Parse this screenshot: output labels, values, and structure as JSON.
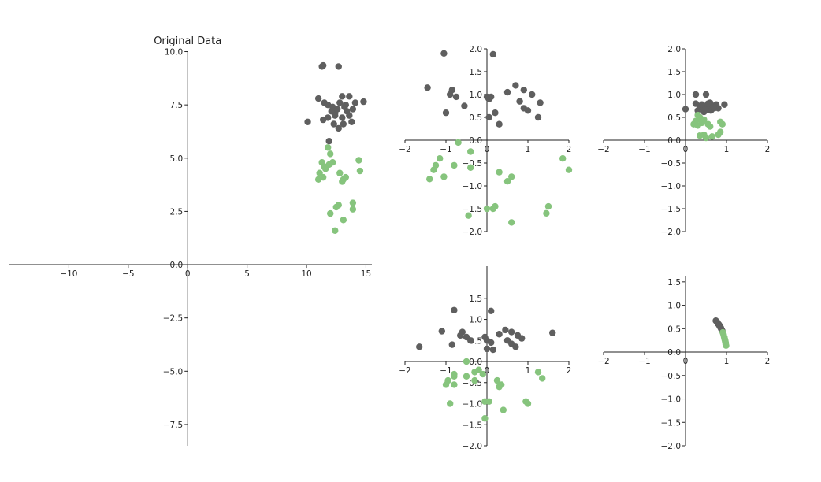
{
  "colors": {
    "class_a": "#5f5f5f",
    "class_b": "#86c47d",
    "axis": "#222222"
  },
  "chart_data": [
    {
      "type": "scatter",
      "id": "original",
      "title": "Original Data",
      "xlim": [
        -15,
        15.5
      ],
      "ylim": [
        -8.5,
        10.5
      ],
      "xticks": [
        -10,
        -5,
        0,
        5,
        10,
        15
      ],
      "yticks": [
        10.0,
        7.5,
        5.0,
        2.5,
        0.0,
        -2.5,
        -5.0,
        -7.5
      ],
      "xtick_labels": [
        "−10",
        "−5",
        "0",
        "5",
        "10",
        "15"
      ],
      "ytick_labels": [
        "10.0",
        "7.5",
        "5.0",
        "2.5",
        "0.0",
        "−2.5",
        "−5.0",
        "−7.5"
      ],
      "series": [
        {
          "class": "a",
          "points": [
            [
              11.3,
              9.3
            ],
            [
              12.7,
              9.3
            ],
            [
              11.4,
              9.35
            ],
            [
              11.0,
              7.8
            ],
            [
              11.5,
              7.6
            ],
            [
              11.8,
              7.5
            ],
            [
              12.2,
              7.4
            ],
            [
              12.4,
              7.1
            ],
            [
              12.6,
              7.3
            ],
            [
              12.8,
              7.6
            ],
            [
              13.0,
              7.9
            ],
            [
              13.2,
              7.4
            ],
            [
              13.4,
              7.2
            ],
            [
              13.6,
              7.0
            ],
            [
              13.8,
              6.7
            ],
            [
              14.1,
              7.6
            ],
            [
              14.8,
              7.65
            ],
            [
              10.1,
              6.7
            ],
            [
              11.4,
              6.8
            ],
            [
              11.8,
              6.9
            ],
            [
              12.3,
              6.6
            ],
            [
              12.7,
              6.4
            ],
            [
              13.0,
              6.9
            ],
            [
              13.3,
              7.5
            ],
            [
              13.6,
              7.9
            ],
            [
              11.9,
              5.8
            ],
            [
              12.4,
              7.0
            ],
            [
              13.1,
              6.6
            ],
            [
              13.9,
              7.3
            ],
            [
              12.1,
              7.2
            ]
          ]
        },
        {
          "class": "b",
          "points": [
            [
              11.8,
              5.5
            ],
            [
              12.0,
              5.2
            ],
            [
              11.3,
              4.8
            ],
            [
              11.6,
              4.5
            ],
            [
              11.9,
              4.7
            ],
            [
              12.2,
              4.8
            ],
            [
              11.1,
              4.3
            ],
            [
              11.4,
              4.1
            ],
            [
              11.0,
              4.0
            ],
            [
              12.8,
              4.3
            ],
            [
              13.1,
              4.0
            ],
            [
              13.3,
              4.1
            ],
            [
              14.4,
              4.9
            ],
            [
              14.5,
              4.4
            ],
            [
              12.5,
              2.7
            ],
            [
              12.7,
              2.8
            ],
            [
              13.9,
              2.9
            ],
            [
              13.9,
              2.6
            ],
            [
              12.0,
              2.4
            ],
            [
              13.1,
              2.1
            ],
            [
              12.4,
              1.6
            ],
            [
              11.5,
              4.6
            ],
            [
              13.0,
              3.9
            ]
          ]
        }
      ]
    },
    {
      "type": "scatter",
      "id": "panel_top_middle",
      "title": "",
      "xlim": [
        -2,
        2
      ],
      "ylim": [
        -2,
        2
      ],
      "xticks": [
        -2,
        -1,
        0,
        1,
        2
      ],
      "yticks": [
        2.0,
        1.5,
        1.0,
        0.5,
        0.0,
        -0.5,
        -1.0,
        -1.5,
        -2.0
      ],
      "xtick_labels": [
        "−2",
        "−1",
        "0",
        "1",
        "2"
      ],
      "ytick_labels": [
        "2.0",
        "1.5",
        "1.0",
        "0.5",
        "0.0",
        "−0.5",
        "−1.0",
        "−1.5",
        "−2.0"
      ],
      "series": [
        {
          "class": "a",
          "points": [
            [
              -1.05,
              1.9
            ],
            [
              0.15,
              1.88
            ],
            [
              -1.45,
              1.15
            ],
            [
              -0.85,
              1.1
            ],
            [
              -0.9,
              1.0
            ],
            [
              -0.75,
              0.95
            ],
            [
              -0.55,
              0.75
            ],
            [
              -1.0,
              0.6
            ],
            [
              0.0,
              0.95
            ],
            [
              0.05,
              0.9
            ],
            [
              0.2,
              0.6
            ],
            [
              0.3,
              0.35
            ],
            [
              0.05,
              0.5
            ],
            [
              0.5,
              1.05
            ],
            [
              0.7,
              1.2
            ],
            [
              0.9,
              1.1
            ],
            [
              1.1,
              1.0
            ],
            [
              1.3,
              0.82
            ],
            [
              0.8,
              0.85
            ],
            [
              0.9,
              0.7
            ],
            [
              1.0,
              0.65
            ],
            [
              1.25,
              0.5
            ],
            [
              0.1,
              0.95
            ]
          ]
        },
        {
          "class": "b",
          "points": [
            [
              -0.7,
              -0.05
            ],
            [
              -0.4,
              -0.25
            ],
            [
              -1.15,
              -0.4
            ],
            [
              -1.25,
              -0.55
            ],
            [
              -1.3,
              -0.65
            ],
            [
              -0.8,
              -0.55
            ],
            [
              -1.05,
              -0.8
            ],
            [
              -1.4,
              -0.85
            ],
            [
              -0.4,
              -0.6
            ],
            [
              0.3,
              -0.7
            ],
            [
              0.6,
              -0.8
            ],
            [
              0.5,
              -0.9
            ],
            [
              1.85,
              -0.4
            ],
            [
              2.0,
              -0.65
            ],
            [
              0.0,
              -1.5
            ],
            [
              0.2,
              -1.45
            ],
            [
              0.15,
              -1.5
            ],
            [
              1.5,
              -1.45
            ],
            [
              1.45,
              -1.6
            ],
            [
              -0.45,
              -1.65
            ],
            [
              0.6,
              -1.8
            ]
          ]
        }
      ]
    },
    {
      "type": "scatter",
      "id": "panel_top_right",
      "title": "",
      "xlim": [
        -2,
        2
      ],
      "ylim": [
        -2,
        2
      ],
      "xticks": [
        -2,
        -1,
        0,
        1,
        2
      ],
      "yticks": [
        2.0,
        1.5,
        1.0,
        0.5,
        0.0,
        -0.5,
        -1.0,
        -1.5,
        -2.0
      ],
      "xtick_labels": [
        "−2",
        "−1",
        "0",
        "1",
        "2"
      ],
      "ytick_labels": [
        "2.0",
        "1.5",
        "1.0",
        "0.5",
        "0.0",
        "−0.5",
        "−1.0",
        "−1.5",
        "−2.0"
      ],
      "series": [
        {
          "class": "a",
          "points": [
            [
              0.25,
              1.0
            ],
            [
              0.5,
              1.0
            ],
            [
              0.25,
              0.8
            ],
            [
              0.35,
              0.72
            ],
            [
              0.45,
              0.72
            ],
            [
              0.55,
              0.72
            ],
            [
              0.6,
              0.82
            ],
            [
              0.65,
              0.75
            ],
            [
              0.7,
              0.7
            ],
            [
              0.75,
              0.78
            ],
            [
              0.8,
              0.7
            ],
            [
              0.95,
              0.78
            ],
            [
              0.0,
              0.68
            ],
            [
              0.3,
              0.65
            ],
            [
              0.45,
              0.62
            ],
            [
              0.55,
              0.8
            ],
            [
              0.62,
              0.65
            ],
            [
              0.68,
              0.72
            ],
            [
              0.4,
              0.78
            ],
            [
              0.5,
              0.66
            ]
          ]
        },
        {
          "class": "b",
          "points": [
            [
              0.3,
              0.55
            ],
            [
              0.35,
              0.5
            ],
            [
              0.25,
              0.42
            ],
            [
              0.4,
              0.42
            ],
            [
              0.45,
              0.45
            ],
            [
              0.2,
              0.35
            ],
            [
              0.3,
              0.32
            ],
            [
              0.55,
              0.35
            ],
            [
              0.6,
              0.3
            ],
            [
              0.85,
              0.4
            ],
            [
              0.9,
              0.35
            ],
            [
              0.35,
              0.1
            ],
            [
              0.45,
              0.12
            ],
            [
              0.5,
              0.05
            ],
            [
              0.65,
              0.08
            ],
            [
              0.8,
              0.12
            ],
            [
              0.85,
              0.18
            ],
            [
              0.4,
              0.38
            ]
          ]
        }
      ]
    },
    {
      "type": "scatter",
      "id": "panel_bottom_middle",
      "title": "",
      "xlim": [
        -2,
        2
      ],
      "ylim": [
        -2,
        2.3
      ],
      "xticks": [
        -2,
        -1,
        0,
        1,
        2
      ],
      "yticks": [
        1.5,
        1.0,
        0.5,
        0.0,
        -0.5,
        -1.0,
        -1.5,
        -2.0
      ],
      "xtick_labels": [
        "−2",
        "−1",
        "0",
        "1",
        "2"
      ],
      "ytick_labels": [
        "1.5",
        "1.0",
        "0.5",
        "0.0",
        "−0.5",
        "−1.0",
        "−1.5",
        "−2.0"
      ],
      "series": [
        {
          "class": "a",
          "points": [
            [
              -0.8,
              1.22
            ],
            [
              0.1,
              1.2
            ],
            [
              -1.65,
              0.35
            ],
            [
              -1.1,
              0.72
            ],
            [
              -0.6,
              0.7
            ],
            [
              -0.65,
              0.62
            ],
            [
              -0.5,
              0.58
            ],
            [
              -0.85,
              0.4
            ],
            [
              -0.05,
              0.58
            ],
            [
              0.0,
              0.5
            ],
            [
              0.15,
              0.28
            ],
            [
              0.0,
              0.3
            ],
            [
              0.3,
              0.65
            ],
            [
              0.45,
              0.75
            ],
            [
              0.6,
              0.7
            ],
            [
              0.75,
              0.62
            ],
            [
              0.85,
              0.55
            ],
            [
              0.5,
              0.5
            ],
            [
              0.6,
              0.42
            ],
            [
              0.7,
              0.35
            ],
            [
              1.6,
              0.68
            ],
            [
              -0.4,
              0.5
            ],
            [
              0.1,
              0.45
            ]
          ]
        },
        {
          "class": "b",
          "points": [
            [
              -0.5,
              0.0
            ],
            [
              -0.8,
              -0.35
            ],
            [
              -0.8,
              -0.3
            ],
            [
              -0.5,
              -0.35
            ],
            [
              -0.3,
              -0.25
            ],
            [
              -0.2,
              -0.2
            ],
            [
              -0.1,
              -0.3
            ],
            [
              -0.3,
              -0.45
            ],
            [
              -0.95,
              -0.45
            ],
            [
              -1.0,
              -0.55
            ],
            [
              -0.8,
              -0.55
            ],
            [
              0.25,
              -0.45
            ],
            [
              0.3,
              -0.6
            ],
            [
              1.25,
              -0.25
            ],
            [
              1.35,
              -0.4
            ],
            [
              -0.9,
              -1.0
            ],
            [
              -0.05,
              -0.95
            ],
            [
              0.05,
              -0.95
            ],
            [
              0.4,
              -1.15
            ],
            [
              1.0,
              -1.0
            ],
            [
              0.95,
              -0.95
            ],
            [
              -0.05,
              -1.35
            ],
            [
              0.35,
              -0.55
            ]
          ]
        }
      ]
    },
    {
      "type": "scatter",
      "id": "panel_bottom_right",
      "title": "",
      "xlim": [
        -2,
        2
      ],
      "ylim": [
        -2,
        1.8
      ],
      "xticks": [
        -2,
        -1,
        0,
        1,
        2
      ],
      "yticks": [
        1.5,
        1.0,
        0.5,
        0.0,
        -0.5,
        -1.0,
        -1.5,
        -2.0
      ],
      "xtick_labels": [
        "−2",
        "−1",
        "0",
        "1",
        "2"
      ],
      "ytick_labels": [
        "1.5",
        "1.0",
        "0.5",
        "0.0",
        "−0.5",
        "−1.0",
        "−1.5",
        "−2.0"
      ],
      "series": [
        {
          "class": "a",
          "points": [
            [
              0.78,
              0.63
            ],
            [
              0.8,
              0.6
            ],
            [
              0.82,
              0.58
            ],
            [
              0.84,
              0.55
            ],
            [
              0.86,
              0.52
            ],
            [
              0.88,
              0.48
            ],
            [
              0.9,
              0.45
            ],
            [
              0.79,
              0.61
            ],
            [
              0.81,
              0.59
            ],
            [
              0.83,
              0.56
            ],
            [
              0.85,
              0.53
            ],
            [
              0.87,
              0.5
            ],
            [
              0.76,
              0.65
            ],
            [
              0.74,
              0.67
            ],
            [
              0.89,
              0.46
            ]
          ]
        },
        {
          "class": "b",
          "points": [
            [
              0.92,
              0.4
            ],
            [
              0.93,
              0.37
            ],
            [
              0.94,
              0.33
            ],
            [
              0.95,
              0.3
            ],
            [
              0.96,
              0.27
            ],
            [
              0.97,
              0.24
            ],
            [
              0.97,
              0.22
            ],
            [
              0.98,
              0.19
            ],
            [
              0.98,
              0.17
            ],
            [
              0.99,
              0.14
            ],
            [
              0.91,
              0.42
            ],
            [
              0.95,
              0.31
            ],
            [
              0.96,
              0.26
            ],
            [
              0.98,
              0.2
            ]
          ]
        }
      ]
    }
  ]
}
